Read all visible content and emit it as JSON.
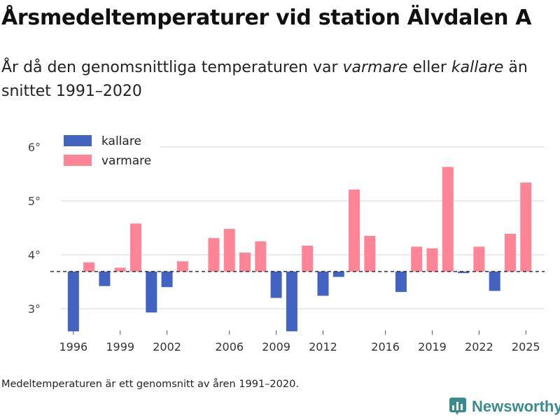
{
  "title": "Årsmedeltemperaturer vid station Älvdalen A",
  "subtitle": {
    "pre": "År då den genomsnittliga temperaturen var ",
    "warm_word": "varmare",
    "mid": " eller ",
    "cold_word": "kallare",
    "post": " än snittet 1991–2020"
  },
  "footnote": "Medeltemperaturen är ett genomsnitt av åren 1991–2020.",
  "brand": "Newsworthy",
  "colors": {
    "colder": "#4263c2",
    "warmer": "#ff8496",
    "grid": "#dddddd",
    "baseline": "#333333",
    "brand": "#3a8c8c"
  },
  "chart_data": {
    "type": "bar",
    "baseline": 3.69,
    "ylim": [
      2.57,
      6.2
    ],
    "yticks": [
      3,
      4,
      5,
      6
    ],
    "ytick_labels": [
      "3°",
      "4°",
      "5°",
      "6°"
    ],
    "xticks": [
      1996,
      1999,
      2002,
      2006,
      2009,
      2012,
      2016,
      2019,
      2022,
      2025
    ],
    "xlim": [
      1995.2,
      2026.2
    ],
    "legend": {
      "position": "top-left",
      "entries": [
        {
          "label": "kallare",
          "key": "colder"
        },
        {
          "label": "varmare",
          "key": "warmer"
        }
      ]
    },
    "bars": [
      {
        "year": 1996,
        "value": 2.58
      },
      {
        "year": 1997,
        "value": 3.86
      },
      {
        "year": 1998,
        "value": 3.42
      },
      {
        "year": 1999,
        "value": 3.76
      },
      {
        "year": 2000,
        "value": 4.58
      },
      {
        "year": 2001,
        "value": 2.93
      },
      {
        "year": 2002,
        "value": 3.4
      },
      {
        "year": 2003,
        "value": 3.88
      },
      {
        "year": 2005,
        "value": 4.31
      },
      {
        "year": 2006,
        "value": 4.48
      },
      {
        "year": 2007,
        "value": 4.04
      },
      {
        "year": 2008,
        "value": 4.25
      },
      {
        "year": 2009,
        "value": 3.2
      },
      {
        "year": 2010,
        "value": 2.58
      },
      {
        "year": 2011,
        "value": 4.17
      },
      {
        "year": 2012,
        "value": 3.24
      },
      {
        "year": 2013,
        "value": 3.59
      },
      {
        "year": 2014,
        "value": 5.21
      },
      {
        "year": 2015,
        "value": 4.35
      },
      {
        "year": 2017,
        "value": 3.31
      },
      {
        "year": 2018,
        "value": 4.15
      },
      {
        "year": 2019,
        "value": 4.12
      },
      {
        "year": 2020,
        "value": 5.63
      },
      {
        "year": 2021,
        "value": 3.66
      },
      {
        "year": 2022,
        "value": 4.15
      },
      {
        "year": 2023,
        "value": 3.33
      },
      {
        "year": 2024,
        "value": 4.39
      },
      {
        "year": 2025,
        "value": 5.34
      }
    ]
  }
}
